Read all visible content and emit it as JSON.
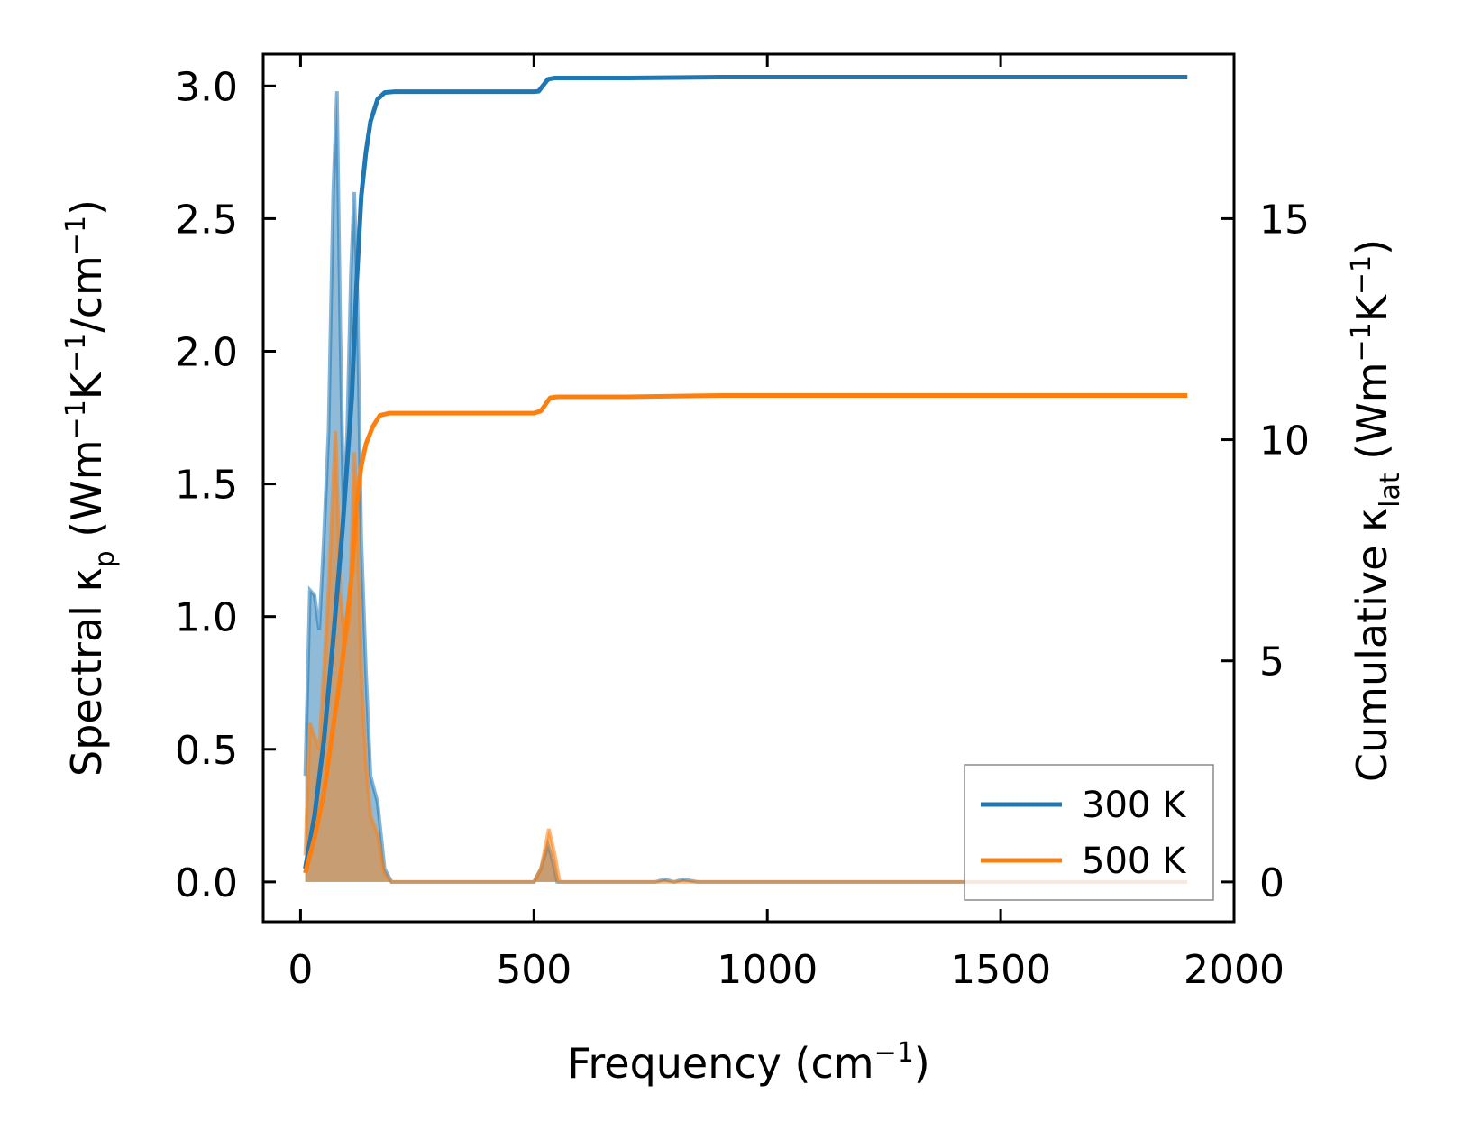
{
  "chart_data": {
    "type": "line",
    "xlabel": "Frequency (cm",
    "xlabel_sup": "−1",
    "xlabel_tail": ")",
    "ylabel_left": {
      "p1": "Spectral κ",
      "sub": "p",
      "p2": " (Wm",
      "sup1": "−1",
      "p3": "K",
      "sup2": "−1",
      "p4": "/cm",
      "sup3": "−1",
      "p5": ")"
    },
    "ylabel_right": {
      "p1": "Cumulative κ",
      "sub": "lat",
      "p2": " (Wm",
      "sup1": "−1",
      "p3": "K",
      "sup2": "−1",
      "p4": ")"
    },
    "xlim": [
      -80,
      2000
    ],
    "ylim_left": [
      -0.15,
      3.12
    ],
    "ylim_right": [
      -0.9,
      18.72
    ],
    "xticks": [
      0,
      500,
      1000,
      1500,
      2000
    ],
    "xtick_labels": [
      "0",
      "500",
      "1000",
      "1500",
      "2000"
    ],
    "yticks_left": [
      0.0,
      0.5,
      1.0,
      1.5,
      2.0,
      2.5,
      3.0
    ],
    "ytick_labels_left": [
      "0.0",
      "0.5",
      "1.0",
      "1.5",
      "2.0",
      "2.5",
      "3.0"
    ],
    "yticks_right": [
      0,
      5,
      10,
      15
    ],
    "ytick_labels_right": [
      "0",
      "5",
      "10",
      "15"
    ],
    "legend_position": "lower-right",
    "grid": false,
    "series": [
      {
        "name": "300 K",
        "color": "#1f77b4",
        "spectral": [
          [
            10,
            0.4
          ],
          [
            20,
            1.1
          ],
          [
            30,
            1.08
          ],
          [
            40,
            0.95
          ],
          [
            50,
            1.3
          ],
          [
            60,
            1.7
          ],
          [
            70,
            2.6
          ],
          [
            78,
            2.98
          ],
          [
            85,
            2.1
          ],
          [
            92,
            1.4
          ],
          [
            100,
            1.7
          ],
          [
            108,
            2.3
          ],
          [
            115,
            2.6
          ],
          [
            122,
            2.2
          ],
          [
            130,
            1.3
          ],
          [
            140,
            0.8
          ],
          [
            150,
            0.4
          ],
          [
            165,
            0.3
          ],
          [
            180,
            0.05
          ],
          [
            195,
            0.0
          ],
          [
            500,
            0.0
          ],
          [
            515,
            0.05
          ],
          [
            530,
            0.14
          ],
          [
            540,
            0.08
          ],
          [
            550,
            0.0
          ],
          [
            760,
            0.0
          ],
          [
            780,
            0.01
          ],
          [
            800,
            0.0
          ],
          [
            820,
            0.01
          ],
          [
            850,
            0.0
          ],
          [
            1900,
            0.0
          ]
        ],
        "cumulative": [
          [
            10,
            0.3
          ],
          [
            30,
            1.5
          ],
          [
            50,
            3.2
          ],
          [
            70,
            5.5
          ],
          [
            90,
            8.0
          ],
          [
            110,
            11.0
          ],
          [
            120,
            13.5
          ],
          [
            130,
            15.5
          ],
          [
            140,
            16.5
          ],
          [
            150,
            17.2
          ],
          [
            165,
            17.7
          ],
          [
            180,
            17.85
          ],
          [
            200,
            17.87
          ],
          [
            500,
            17.87
          ],
          [
            510,
            17.88
          ],
          [
            530,
            18.15
          ],
          [
            545,
            18.18
          ],
          [
            700,
            18.18
          ],
          [
            900,
            18.2
          ],
          [
            1900,
            18.2
          ]
        ]
      },
      {
        "name": "500 K",
        "color": "#ff7f0e",
        "spectral": [
          [
            10,
            0.1
          ],
          [
            20,
            0.6
          ],
          [
            30,
            0.55
          ],
          [
            40,
            0.5
          ],
          [
            50,
            0.8
          ],
          [
            60,
            1.1
          ],
          [
            70,
            1.5
          ],
          [
            75,
            1.7
          ],
          [
            85,
            1.1
          ],
          [
            95,
            0.9
          ],
          [
            105,
            1.0
          ],
          [
            115,
            1.62
          ],
          [
            122,
            1.4
          ],
          [
            130,
            0.8
          ],
          [
            140,
            0.45
          ],
          [
            150,
            0.25
          ],
          [
            165,
            0.18
          ],
          [
            180,
            0.03
          ],
          [
            195,
            0.0
          ],
          [
            500,
            0.0
          ],
          [
            515,
            0.05
          ],
          [
            532,
            0.2
          ],
          [
            545,
            0.1
          ],
          [
            555,
            0.0
          ],
          [
            1900,
            0.0
          ]
        ],
        "cumulative": [
          [
            10,
            0.2
          ],
          [
            30,
            1.0
          ],
          [
            50,
            2.0
          ],
          [
            70,
            3.5
          ],
          [
            90,
            5.0
          ],
          [
            110,
            7.0
          ],
          [
            120,
            8.5
          ],
          [
            130,
            9.4
          ],
          [
            140,
            9.9
          ],
          [
            155,
            10.3
          ],
          [
            170,
            10.55
          ],
          [
            190,
            10.6
          ],
          [
            500,
            10.6
          ],
          [
            515,
            10.65
          ],
          [
            535,
            10.95
          ],
          [
            550,
            10.97
          ],
          [
            700,
            10.97
          ],
          [
            900,
            11.0
          ],
          [
            1900,
            11.0
          ]
        ]
      }
    ]
  }
}
